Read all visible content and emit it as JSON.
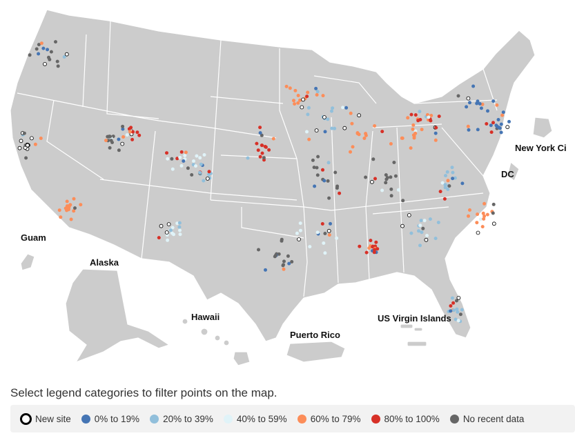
{
  "map": {
    "labels": {
      "guam": "Guam",
      "alaska": "Alaska",
      "hawaii": "Hawaii",
      "puerto_rico": "Puerto Rico",
      "usvi": "US Virgin Islands",
      "nyc": "New York Ci",
      "dc": "DC"
    }
  },
  "instruction": "Select legend categories to filter points on the map.",
  "legend": {
    "items": [
      {
        "key": "new",
        "label": "New site",
        "color": "#ffffff",
        "stroke": "#000000"
      },
      {
        "key": "p0",
        "label": "0% to 19%",
        "color": "#4575b4"
      },
      {
        "key": "p20",
        "label": "20% to 39%",
        "color": "#91bfdb"
      },
      {
        "key": "p40",
        "label": "40% to 59%",
        "color": "#e0f3f8"
      },
      {
        "key": "p60",
        "label": "60% to 79%",
        "color": "#fc8d59"
      },
      {
        "key": "p80",
        "label": "80% to 100%",
        "color": "#d73027"
      },
      {
        "key": "none",
        "label": "No recent data",
        "color": "#666666"
      }
    ]
  }
}
